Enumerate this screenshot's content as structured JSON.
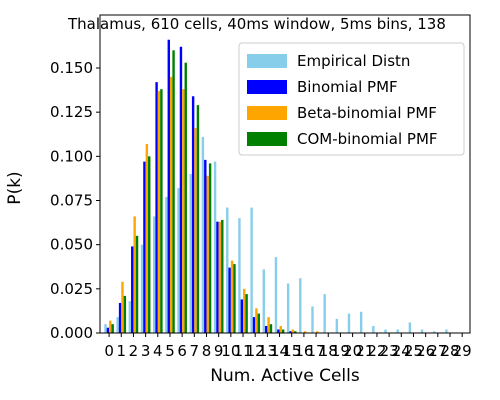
{
  "chart_data": {
    "type": "bar",
    "title": "Thalamus, 610 cells, 40ms window, 5ms bins, 138",
    "xlabel": "Num. Active Cells",
    "ylabel": "P(k)",
    "ylim": [
      0,
      0.18
    ],
    "yticks": [
      "0.000",
      "0.025",
      "0.050",
      "0.075",
      "0.100",
      "0.125",
      "0.150"
    ],
    "xticks": [
      "0",
      "1",
      "2",
      "3",
      "4",
      "5",
      "6",
      "7",
      "8",
      "9",
      "10",
      "11",
      "12",
      "13",
      "14",
      "15",
      "16",
      "17",
      "18",
      "19",
      "20",
      "21",
      "22",
      "23",
      "24",
      "25",
      "26",
      "27",
      "28",
      "29"
    ],
    "legend_position": "top-right",
    "colors": {
      "empirical": "#87ceeb",
      "binomial": "#0000ff",
      "betabinomial": "#ffa500",
      "combinomial": "#008000"
    },
    "series": [
      {
        "name": "Empirical Distn",
        "key": "empirical",
        "values": [
          0.005,
          0.009,
          0.018,
          0.05,
          0.066,
          0.077,
          0.082,
          0.09,
          0.111,
          0.097,
          0.071,
          0.065,
          0.071,
          0.036,
          0.043,
          0.028,
          0.031,
          0.015,
          0.022,
          0.008,
          0.011,
          0.012,
          0.004,
          0.002,
          0.002,
          0.006,
          0.002,
          0.001,
          0.002,
          0.0
        ]
      },
      {
        "name": "Binomial PMF",
        "key": "binomial",
        "values": [
          0.003,
          0.017,
          0.049,
          0.097,
          0.142,
          0.166,
          0.162,
          0.134,
          0.098,
          0.063,
          0.037,
          0.019,
          0.009,
          0.004,
          0.002,
          0.001,
          0.0,
          0.0,
          0.0,
          0.0,
          0.0,
          0.0,
          0.0,
          0.0,
          0.0,
          0.0,
          0.0,
          0.0,
          0.0,
          0.0
        ]
      },
      {
        "name": "Beta-binomial PMF",
        "key": "betabinomial",
        "values": [
          0.007,
          0.029,
          0.066,
          0.107,
          0.137,
          0.145,
          0.138,
          0.116,
          0.089,
          0.063,
          0.041,
          0.025,
          0.014,
          0.009,
          0.004,
          0.002,
          0.001,
          0.001,
          0.0,
          0.0,
          0.0,
          0.0,
          0.0,
          0.0,
          0.0,
          0.0,
          0.0,
          0.0,
          0.0,
          0.0
        ]
      },
      {
        "name": "COM-binomial PMF",
        "key": "combinomial",
        "values": [
          0.005,
          0.021,
          0.055,
          0.1,
          0.138,
          0.16,
          0.153,
          0.129,
          0.096,
          0.064,
          0.039,
          0.022,
          0.011,
          0.005,
          0.002,
          0.001,
          0.0,
          0.0,
          0.0,
          0.0,
          0.0,
          0.0,
          0.0,
          0.0,
          0.0,
          0.0,
          0.0,
          0.0,
          0.0,
          0.0
        ]
      }
    ]
  }
}
